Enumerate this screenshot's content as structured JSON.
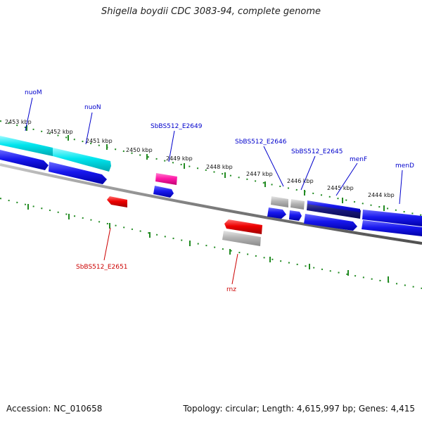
{
  "title": "Shigella boydii CDC 3083-94, complete genome",
  "footer": {
    "accession": "Accession: NC_010658",
    "topology": "Topology: circular; Length: 4,615,997 bp; Genes: 4,415"
  },
  "ticks": [
    "2453 kbp",
    "2452 kbp",
    "2451 kbp",
    "2450 kbp",
    "2449 kbp",
    "2448 kbp",
    "2447 kbp",
    "2446 kbp",
    "2445 kbp",
    "2444 kbp"
  ],
  "gene_labels": {
    "nuoM": "nuoM",
    "nuoN": "nuoN",
    "e2649": "SbBS512_E2649",
    "e2646": "SbBS512_E2646",
    "e2645": "SbBS512_E2645",
    "menF": "menF",
    "menD": "menD",
    "e2651": "SbBS512_E2651",
    "rnz": "rnz"
  },
  "colors": {
    "cyan_gene": "#00e5ee",
    "blue_gene": "#1010ee",
    "magenta_gene": "#ff1aa8",
    "red_gene": "#ee0000",
    "gray_gene": "#b4b4b4",
    "dark_gene": "#1a1a80",
    "tick_green": "#228b22",
    "backbone": "#808080"
  }
}
